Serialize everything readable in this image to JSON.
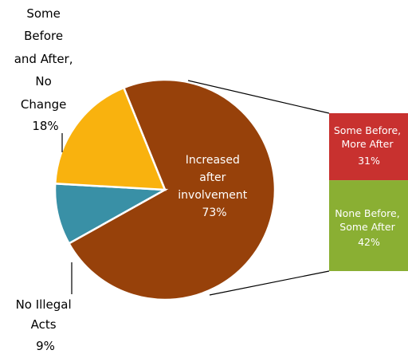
{
  "chart_data": {
    "type": "pie",
    "pie": {
      "slices": [
        {
          "label": [
            "Increased",
            "after",
            "involvement"
          ],
          "pct_label": "73%",
          "value": 73,
          "color": "#97410A"
        },
        {
          "label": [
            "No Illegal",
            "Acts"
          ],
          "pct_label": "9%",
          "value": 9,
          "color": "#3990A6"
        },
        {
          "label": [
            "Some",
            "Before",
            "and After,",
            "No",
            "Change"
          ],
          "pct_label": "18%",
          "value": 18,
          "color": "#F9B20E"
        }
      ]
    },
    "breakdown": {
      "of_slice": "Increased after involvement",
      "segments": [
        {
          "label": [
            "Some Before,",
            "More After"
          ],
          "pct_label": "31%",
          "value": 31,
          "color": "#C8312F"
        },
        {
          "label": [
            "None Before,",
            "Some After"
          ],
          "pct_label": "42%",
          "value": 42,
          "color": "#8AAF33"
        }
      ]
    }
  }
}
